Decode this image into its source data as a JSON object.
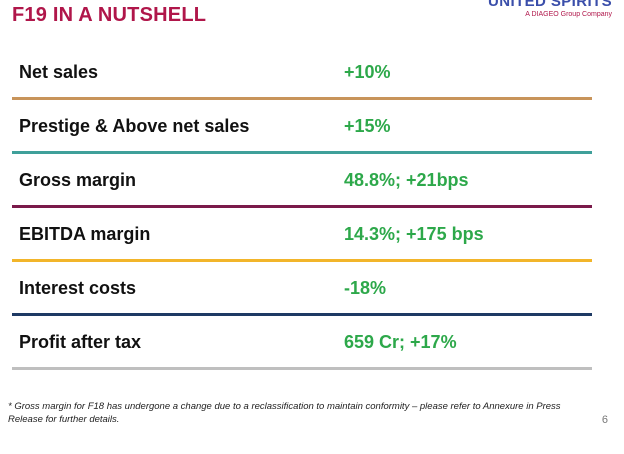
{
  "slide": {
    "title": "F19 IN A NUTSHELL",
    "logo": {
      "name": "UNITED SPIRITS",
      "tagline": "A DIAGEO Group Company"
    },
    "metrics": [
      {
        "label": "Net sales",
        "value": "+10%",
        "divider_color": "#c8945a"
      },
      {
        "label": "Prestige & Above net sales",
        "value": "+15%",
        "divider_color": "#3fa09a"
      },
      {
        "label": "Gross margin",
        "value": "48.8%; +21bps",
        "divider_color": "#7a1a4a"
      },
      {
        "label": "EBITDA margin",
        "value": "14.3%; +175 bps",
        "divider_color": "#f2b52a"
      },
      {
        "label": "Interest costs",
        "value": "-18%",
        "divider_color": "#1e3a64"
      },
      {
        "label": "Profit after tax",
        "value": "659 Cr; +17%",
        "divider_color": "#bfbfbf"
      }
    ],
    "footnote": "* Gross margin for F18 has undergone a change due to a reclassification to maintain conformity – please refer to Annexure in Press Release for further details.",
    "page_number": "6",
    "colors": {
      "title": "#b0164a",
      "value": "#2da84a",
      "logo": "#3a4eaa"
    }
  }
}
